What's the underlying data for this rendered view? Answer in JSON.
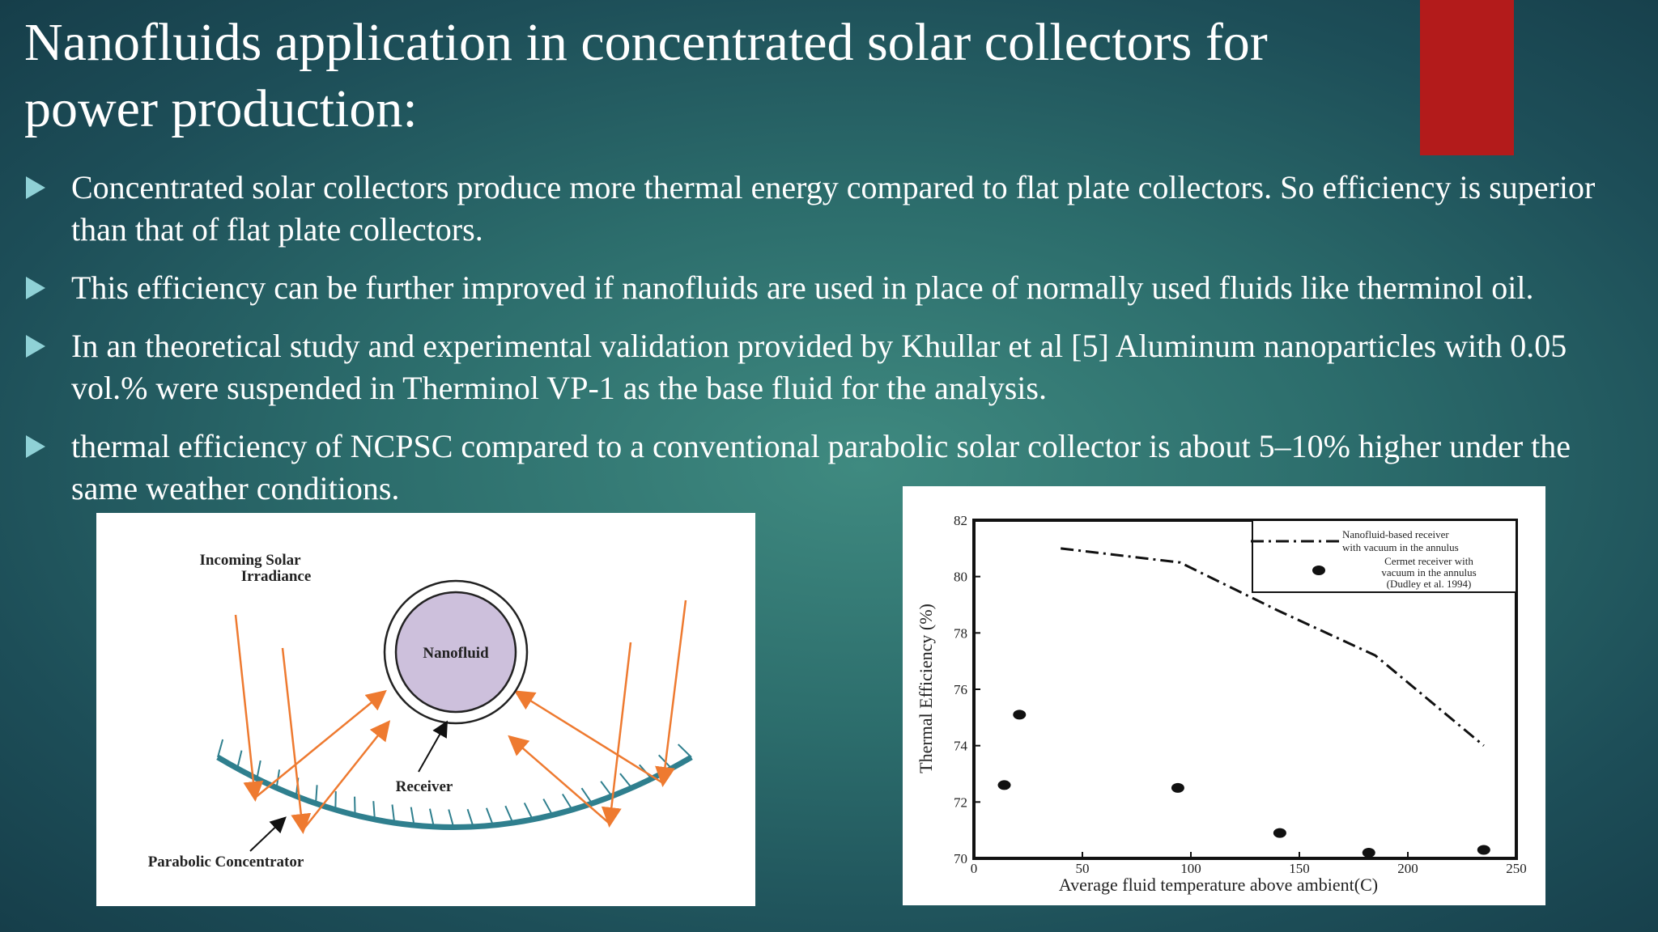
{
  "slide": {
    "title_lines": [
      "Nanofluids application in concentrated solar collectors for",
      "power production:"
    ],
    "bullets": [
      "Concentrated solar collectors produce more thermal energy compared to flat plate collectors. So efficiency is superior than that of flat plate collectors.",
      "This efficiency can be further improved if nanofluids are used in place of normally used fluids like therminol oil.",
      "In an theoretical study and experimental validation provided by Khullar et al [5] Aluminum nanoparticles with 0.05 vol.% were suspended in Therminol VP-1 as the base fluid for the analysis.",
      "thermal efficiency of NCPSC compared to a conventional parabolic solar collector is about 5–10% higher under the same weather conditions."
    ],
    "accent_color": "#b31b1b",
    "bullet_color": "#8fd1d6"
  },
  "diagram": {
    "labels": {
      "incoming_line1": "Incoming Solar",
      "incoming_line2": "Irradiance",
      "nanofluid": "Nanofluid",
      "receiver": "Receiver",
      "concentrator": "Parabolic Concentrator"
    },
    "colors": {
      "rays": "#ee7a30",
      "concentrator": "#2f7f8e",
      "nanofluid_fill": "#cdc0dc"
    }
  },
  "chart_data": {
    "type": "line",
    "xlabel": "Average fluid temperature above ambient(C)",
    "ylabel": "Thermal Efficiency (%)",
    "xlim": [
      0,
      250
    ],
    "ylim": [
      70,
      82
    ],
    "x_ticks": [
      "0",
      "50",
      "100",
      "150",
      "200",
      "250"
    ],
    "y_ticks": [
      "70",
      "72",
      "74",
      "76",
      "78",
      "80",
      "82"
    ],
    "legend_position": "top-right",
    "series": [
      {
        "name": "Nanofluid-based receiver with vacuum in the annulus",
        "legend_lines": [
          "Nanofluid-based receiver",
          "with vacuum in the annulus"
        ],
        "style": "dash-dot line",
        "points": [
          [
            40,
            81.0
          ],
          [
            95,
            80.5
          ],
          [
            140,
            78.8
          ],
          [
            185,
            77.2
          ],
          [
            235,
            74.0
          ]
        ]
      },
      {
        "name": "Cermet receiver with vacuum in the annulus (Dudley et al. 1994)",
        "legend_lines": [
          "Cermet receiver with",
          "vacuum in the annulus",
          "(Dudley et al. 1994)"
        ],
        "style": "markers",
        "points": [
          [
            14,
            72.6
          ],
          [
            21,
            75.1
          ],
          [
            94,
            72.5
          ],
          [
            141,
            70.9
          ],
          [
            182,
            70.2
          ],
          [
            235,
            70.3
          ]
        ]
      }
    ]
  }
}
